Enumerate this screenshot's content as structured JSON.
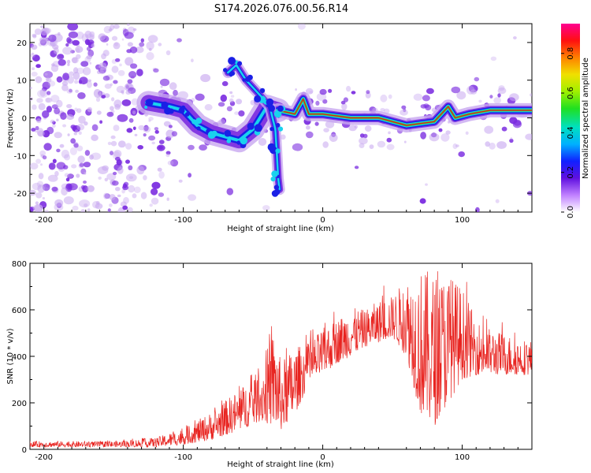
{
  "title": "S174.2026.076.00.56.R14",
  "colors": {
    "trace": "#e8231f",
    "speckle": "#7a2be0",
    "ridge_core": "#e0201a",
    "ridge_mid": "#2fd84a",
    "ridge_outer": "#19d2ee",
    "ridge_edge": "#1a20e6",
    "halo": "#c8a8f0"
  },
  "chart_data": [
    {
      "id": "spectrogram",
      "type": "heatmap",
      "title": "S174.2026.076.00.56.R14",
      "xlabel": "Height of straight line (km)",
      "ylabel": "Frequency (Hz)",
      "xlim": [
        -210,
        150
      ],
      "ylim": [
        -25,
        25
      ],
      "xticks": [
        -200,
        -100,
        0,
        100
      ],
      "yticks": [
        20,
        10,
        0,
        -10,
        -20
      ],
      "colorbar": {
        "label": "Normalized spectral amplitude",
        "range": [
          0.0,
          0.95
        ],
        "ticks": [
          0.0,
          0.2,
          0.4,
          0.6,
          0.8
        ],
        "tick_labels": [
          "0.0",
          "0.2",
          "0.4",
          "0.6",
          "0.8"
        ],
        "colormap": [
          "#ffffff",
          "#b040ff",
          "#5010e0",
          "#1020ff",
          "#00b0ff",
          "#00e0c0",
          "#20e020",
          "#a0f000",
          "#f0e000",
          "#ff8000",
          "#ff1010",
          "#ff0090"
        ]
      },
      "ridge": [
        {
          "x": -125,
          "y": 4
        },
        {
          "x": -110,
          "y": 3
        },
        {
          "x": -100,
          "y": 2
        },
        {
          "x": -90,
          "y": -2
        },
        {
          "x": -80,
          "y": -4
        },
        {
          "x": -70,
          "y": -5
        },
        {
          "x": -60,
          "y": -6
        },
        {
          "x": -50,
          "y": -3
        },
        {
          "x": -40,
          "y": 3
        },
        {
          "x": -32,
          "y": 2
        },
        {
          "x": -20,
          "y": 1
        },
        {
          "x": -14,
          "y": 5
        },
        {
          "x": -10,
          "y": 1
        },
        {
          "x": 0,
          "y": 1
        },
        {
          "x": 20,
          "y": 0
        },
        {
          "x": 40,
          "y": 0
        },
        {
          "x": 50,
          "y": -1
        },
        {
          "x": 60,
          "y": -2
        },
        {
          "x": 80,
          "y": -1
        },
        {
          "x": 90,
          "y": 3
        },
        {
          "x": 95,
          "y": 0
        },
        {
          "x": 105,
          "y": 1
        },
        {
          "x": 120,
          "y": 2
        },
        {
          "x": 140,
          "y": 2
        },
        {
          "x": 150,
          "y": 2
        }
      ],
      "branch_upper": [
        {
          "x": -68,
          "y": 12
        },
        {
          "x": -62,
          "y": 14
        },
        {
          "x": -55,
          "y": 10
        },
        {
          "x": -45,
          "y": 6
        },
        {
          "x": -38,
          "y": 3
        },
        {
          "x": -34,
          "y": -3
        },
        {
          "x": -33,
          "y": -9
        },
        {
          "x": -32,
          "y": -16
        },
        {
          "x": -31,
          "y": -19
        }
      ]
    },
    {
      "id": "snr",
      "type": "line",
      "xlabel": "Height of straight line (km)",
      "ylabel": "SNR (10 * v/v)",
      "xlim": [
        -210,
        150
      ],
      "ylim": [
        0,
        800
      ],
      "xticks": [
        -200,
        -100,
        0,
        100
      ],
      "yticks": [
        0,
        200,
        400,
        600,
        800
      ],
      "envelope": {
        "x": [
          -210,
          -150,
          -120,
          -100,
          -80,
          -60,
          -45,
          -35,
          -30,
          -20,
          -10,
          0,
          10,
          20,
          30,
          40,
          50,
          60,
          70,
          80,
          90,
          100,
          110,
          120,
          130,
          140,
          150
        ],
        "low": [
          10,
          10,
          10,
          20,
          40,
          80,
          120,
          100,
          80,
          150,
          280,
          320,
          370,
          400,
          440,
          460,
          480,
          400,
          150,
          100,
          200,
          300,
          320,
          320,
          320,
          320,
          320
        ],
        "high": [
          35,
          35,
          50,
          90,
          160,
          260,
          340,
          520,
          380,
          440,
          460,
          520,
          560,
          610,
          600,
          640,
          660,
          740,
          780,
          760,
          760,
          700,
          560,
          520,
          500,
          480,
          470
        ]
      }
    }
  ]
}
